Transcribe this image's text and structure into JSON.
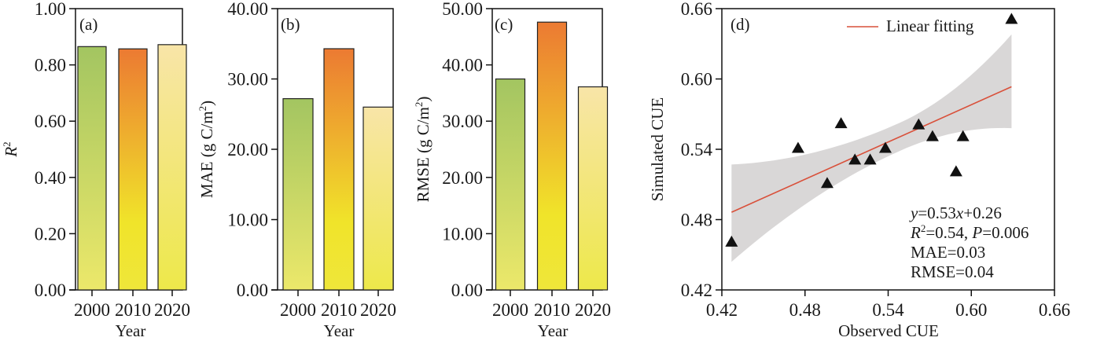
{
  "chart_data": [
    {
      "type": "bar",
      "panel_label": "(a)",
      "categories": [
        "2000",
        "2010",
        "2020"
      ],
      "values": [
        0.865,
        0.857,
        0.872
      ],
      "xlabel": "Year",
      "ylabel_base": "R",
      "ylabel_sup": "2",
      "ylim": [
        0,
        1.0
      ],
      "yticks": [
        "0.00",
        "0.20",
        "0.40",
        "0.60",
        "0.80",
        "1.00"
      ],
      "ytick_values": [
        0,
        0.2,
        0.4,
        0.6,
        0.8,
        1.0
      ]
    },
    {
      "type": "bar",
      "panel_label": "(b)",
      "categories": [
        "2000",
        "2010",
        "2020"
      ],
      "values": [
        27.2,
        34.3,
        26.0
      ],
      "xlabel": "Year",
      "ylabel_base": "MAE (g C/m",
      "ylabel_sup": "2",
      "ylabel_end": ")",
      "ylim": [
        0,
        40
      ],
      "yticks": [
        "0.00",
        "10.00",
        "20.00",
        "30.00",
        "40.00"
      ],
      "ytick_values": [
        0,
        10,
        20,
        30,
        40
      ]
    },
    {
      "type": "bar",
      "panel_label": "(c)",
      "categories": [
        "2000",
        "2010",
        "2020"
      ],
      "values": [
        37.5,
        47.6,
        36.1
      ],
      "xlabel": "Year",
      "ylabel_base": "RMSE (g C/m",
      "ylabel_sup": "2",
      "ylabel_end": ")",
      "ylim": [
        0,
        50
      ],
      "yticks": [
        "0.00",
        "10.00",
        "20.00",
        "30.00",
        "40.00",
        "50.00"
      ],
      "ytick_values": [
        0,
        10,
        20,
        30,
        40,
        50
      ]
    },
    {
      "type": "scatter",
      "panel_label": "(d)",
      "x": [
        0.427,
        0.475,
        0.496,
        0.506,
        0.516,
        0.527,
        0.538,
        0.562,
        0.572,
        0.589,
        0.594,
        0.629
      ],
      "y": [
        0.461,
        0.541,
        0.511,
        0.562,
        0.531,
        0.531,
        0.541,
        0.561,
        0.551,
        0.521,
        0.551,
        0.651
      ],
      "fit": {
        "slope": 0.53,
        "intercept": 0.26,
        "x_range": [
          0.427,
          0.629
        ],
        "ci_low_at_min": 0.444,
        "ci_high_at_min": 0.527,
        "ci_low_at_max": 0.558,
        "ci_high_at_max": 0.638
      },
      "xlabel": "Observed CUE",
      "ylabel": "Simulated CUE",
      "xlim": [
        0.42,
        0.66
      ],
      "ylim": [
        0.42,
        0.66
      ],
      "xticks": [
        "0.42",
        "0.48",
        "0.54",
        "0.60",
        "0.66"
      ],
      "yticks": [
        "0.42",
        "0.48",
        "0.54",
        "0.60",
        "0.66"
      ],
      "tick_values": [
        0.42,
        0.48,
        0.54,
        0.6,
        0.66
      ],
      "legend": "Linear fitting",
      "legend_position": "top-center",
      "annotations": {
        "eq_y": "y",
        "eq_mid": "=0.53",
        "eq_x": "x",
        "eq_end": "+0.26",
        "r2_base": "R",
        "r2_sup": "2",
        "r2_mid": "=0.54, ",
        "p_label": "P",
        "p_val": "=0.006",
        "mae": "MAE=0.03",
        "rmse": "RMSE=0.04"
      }
    }
  ],
  "colors": {
    "bar_2000_top": "#a3c561",
    "bar_2000_bottom": "#ece86a",
    "bar_2010_top": "#ec7a32",
    "bar_2010_mid": "#f0e42a",
    "bar_2010_bottom": "#efe63a",
    "bar_2020_top": "#f8e5a8",
    "bar_2020_bottom": "#ede84a",
    "fit_line": "#d9503a",
    "ci_band": "#d9d7d7",
    "marker": "#111111"
  }
}
